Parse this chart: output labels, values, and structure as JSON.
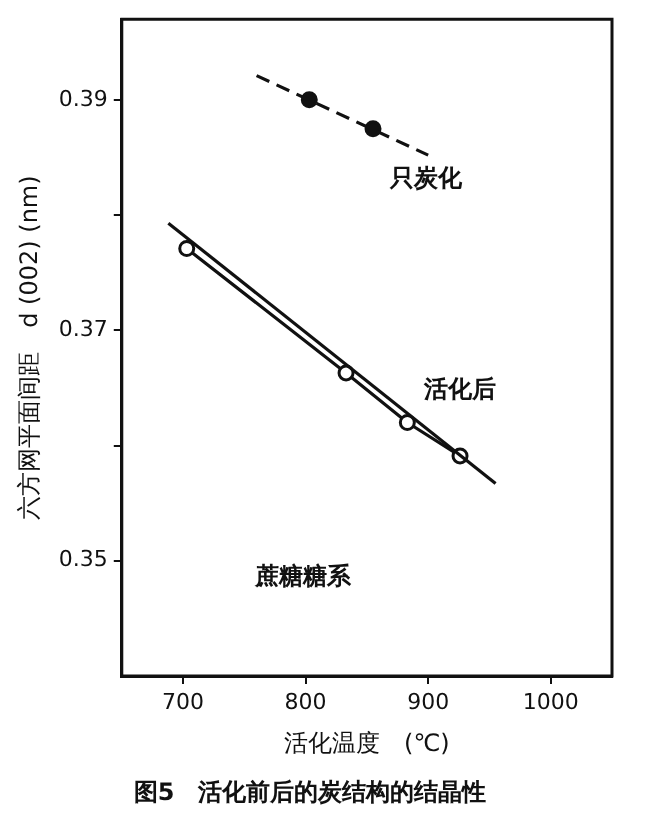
{
  "chart_data": {
    "type": "scatter",
    "title": "图5　活化前后的炭结构的结晶性",
    "xlabel": "活化温度　(℃)",
    "ylabel": "六方网平面间距　d (002) (nm)",
    "xlim": [
      650,
      1050
    ],
    "xticks": [
      700,
      800,
      900,
      1000
    ],
    "ylim": [
      0.34,
      0.397
    ],
    "yticks": [
      0.35,
      {
        "value": 0.36,
        "label": null
      },
      0.37,
      {
        "value": 0.38,
        "label": null
      },
      0.39
    ],
    "grid": false,
    "legend": false,
    "series": [
      {
        "type": "line",
        "x": [
          760,
          900
        ],
        "values": [
          0.3921,
          0.3852
        ],
        "color": "#111111",
        "line_style": "dashed",
        "marker": "none"
      },
      {
        "x": [
          803,
          855
        ],
        "values": [
          0.39,
          0.3875
        ],
        "color": "#111111",
        "marker": "circle"
      },
      {
        "type": "line",
        "x": [
          688,
          955
        ],
        "values": [
          0.3793,
          0.3567
        ],
        "color": "#111111",
        "line_style": "solid",
        "marker": "none"
      },
      {
        "type": "line",
        "x": [
          703,
          833,
          883,
          926
        ],
        "values": [
          0.3771,
          0.3663,
          0.362,
          0.3591
        ],
        "color": "#111111",
        "line_style": "solid",
        "marker": "circle"
      }
    ],
    "annotations": [
      "只炭化",
      "活化后",
      "蔗糖糖系"
    ]
  }
}
